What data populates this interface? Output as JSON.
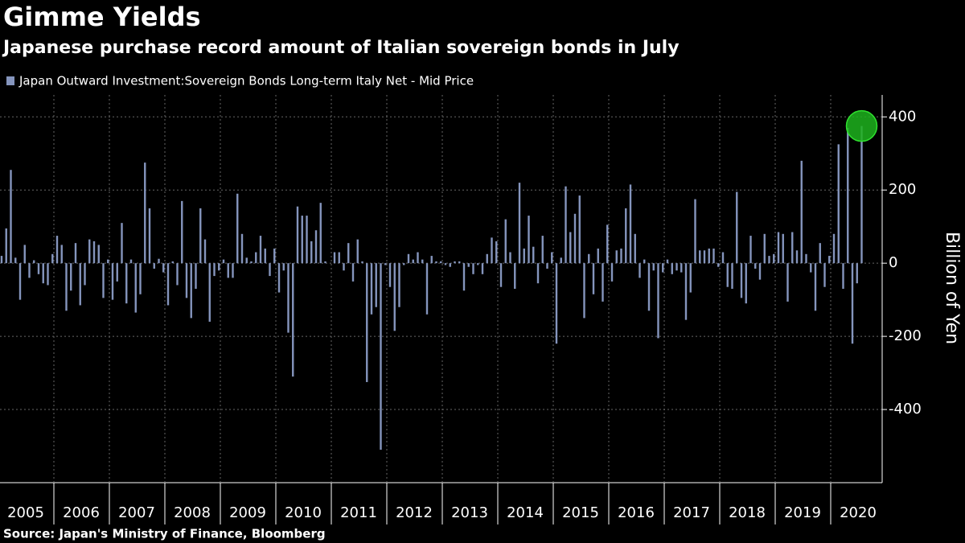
{
  "chart_data": {
    "type": "bar",
    "title": "Gimme Yields",
    "subtitle": "Japanese purchase record amount of Italian sovereign bonds in July",
    "y_label": "Billion of Yen",
    "source": "Source: Japan's Ministry of Finance, Bloomberg",
    "categories": [
      "2005",
      null,
      null,
      null,
      null,
      null,
      null,
      null,
      null,
      null,
      null,
      null,
      "2006",
      null,
      null,
      null,
      null,
      null,
      null,
      null,
      null,
      null,
      null,
      null,
      "2007",
      null,
      null,
      null,
      null,
      null,
      null,
      null,
      null,
      null,
      null,
      null,
      "2008",
      null,
      null,
      null,
      null,
      null,
      null,
      null,
      null,
      null,
      null,
      null,
      "2009",
      null,
      null,
      null,
      null,
      null,
      null,
      null,
      null,
      null,
      null,
      null,
      "2010",
      null,
      null,
      null,
      null,
      null,
      null,
      null,
      null,
      null,
      null,
      null,
      "2011",
      null,
      null,
      null,
      null,
      null,
      null,
      null,
      null,
      null,
      null,
      null,
      "2012",
      null,
      null,
      null,
      null,
      null,
      null,
      null,
      null,
      null,
      null,
      null,
      "2013",
      null,
      null,
      null,
      null,
      null,
      null,
      null,
      null,
      null,
      null,
      null,
      "2014",
      null,
      null,
      null,
      null,
      null,
      null,
      null,
      null,
      null,
      null,
      null,
      "2015",
      null,
      null,
      null,
      null,
      null,
      null,
      null,
      null,
      null,
      null,
      null,
      "2016",
      null,
      null,
      null,
      null,
      null,
      null,
      null,
      null,
      null,
      null,
      null,
      "2017",
      null,
      null,
      null,
      null,
      null,
      null,
      null,
      null,
      null,
      null,
      null,
      "2018",
      null,
      null,
      null,
      null,
      null,
      null,
      null,
      null,
      null,
      null,
      null,
      "2019",
      null,
      null,
      null,
      null,
      null,
      null,
      null,
      null,
      null,
      null,
      null,
      "2020",
      null,
      null,
      null,
      null,
      null,
      null
    ],
    "series": [
      {
        "name": "Japan Outward Investment:Sovereign Bonds Long-term Italy Net - Mid Price",
        "color": "#8595bd",
        "values": [
          20,
          95,
          255,
          15,
          -100,
          50,
          -40,
          8,
          -30,
          -55,
          -60,
          25,
          75,
          50,
          -130,
          -75,
          55,
          -115,
          -60,
          65,
          60,
          50,
          -95,
          10,
          -100,
          -50,
          110,
          -110,
          10,
          -135,
          -85,
          275,
          150,
          -15,
          12,
          -25,
          -115,
          5,
          -60,
          170,
          -95,
          -150,
          -70,
          150,
          65,
          -160,
          -35,
          -20,
          10,
          -40,
          -40,
          190,
          80,
          15,
          5,
          30,
          75,
          40,
          -35,
          40,
          -80,
          -20,
          -190,
          -310,
          155,
          130,
          130,
          60,
          90,
          165,
          5,
          0,
          30,
          30,
          -20,
          55,
          -50,
          65,
          5,
          -325,
          -140,
          -120,
          -510,
          -5,
          -65,
          -185,
          -120,
          -5,
          25,
          10,
          30,
          10,
          -140,
          20,
          5,
          5,
          -5,
          -10,
          5,
          5,
          -75,
          -10,
          -30,
          -5,
          -30,
          25,
          70,
          60,
          -65,
          120,
          30,
          -70,
          220,
          40,
          130,
          45,
          -55,
          75,
          -15,
          30,
          -220,
          15,
          210,
          85,
          135,
          185,
          -150,
          25,
          -85,
          40,
          -105,
          105,
          -50,
          35,
          40,
          150,
          215,
          80,
          -40,
          10,
          -130,
          -20,
          -205,
          -25,
          10,
          -30,
          -20,
          -25,
          -155,
          -80,
          175,
          35,
          35,
          40,
          40,
          -10,
          30,
          -65,
          -70,
          195,
          -95,
          -110,
          75,
          -15,
          -45,
          80,
          20,
          25,
          85,
          80,
          -105,
          85,
          35,
          280,
          25,
          -25,
          -130,
          55,
          -65,
          20,
          80,
          325,
          -70,
          370,
          -220,
          -55,
          375
        ]
      }
    ],
    "ylim": [
      -600,
      460
    ],
    "yticks": [
      400,
      200,
      0,
      -200,
      -400
    ],
    "grid": true
  }
}
